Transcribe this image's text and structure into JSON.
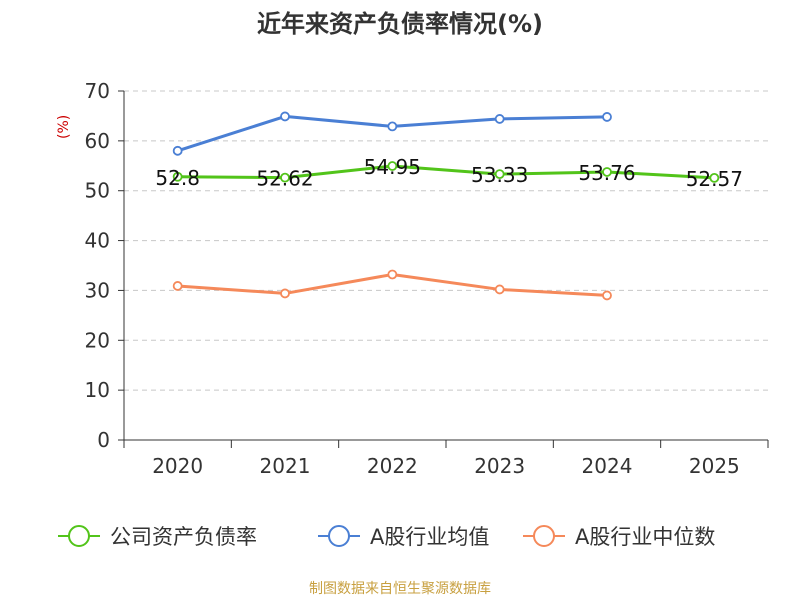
{
  "chart_data": {
    "type": "line",
    "title": "近年来资产负债率情况(%)",
    "ylabel": "(%)",
    "xlabel": "",
    "categories": [
      "2020",
      "2021",
      "2022",
      "2023",
      "2024",
      "2025"
    ],
    "yticks": [
      "0",
      "10",
      "20",
      "30",
      "40",
      "50",
      "60",
      "70"
    ],
    "ylim": [
      0,
      70
    ],
    "grid": true,
    "legend_position": "bottom",
    "series": [
      {
        "name": "公司资产负债率",
        "color": "#52c41a",
        "values": [
          52.8,
          52.62,
          54.95,
          53.33,
          53.76,
          52.57
        ],
        "data_labels": [
          "52.8",
          "52.62",
          "54.95",
          "53.33",
          "53.76",
          "52.57"
        ]
      },
      {
        "name": "A股行业均值",
        "color": "#4a7fd4",
        "values": [
          58.0,
          64.9,
          62.9,
          64.4,
          64.8,
          null
        ]
      },
      {
        "name": "A股行业中位数",
        "color": "#f5895a",
        "values": [
          30.9,
          29.4,
          33.2,
          30.2,
          29.0,
          null
        ]
      }
    ]
  },
  "footer": {
    "source": "制图数据来自恒生聚源数据库"
  }
}
